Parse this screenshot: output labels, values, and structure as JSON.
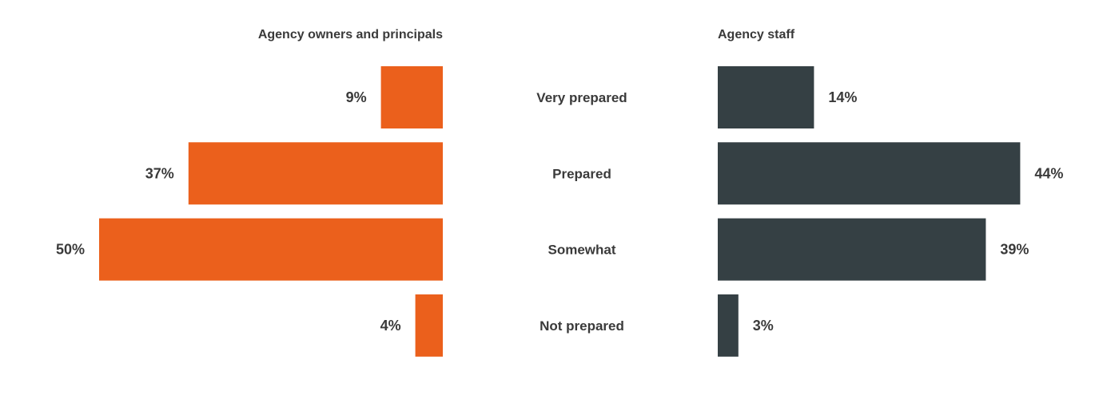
{
  "chart_data": {
    "type": "bar",
    "orientation": "horizontal",
    "layout": "butterfly",
    "categories": [
      "Very prepared",
      "Prepared",
      "Somewhat",
      "Not prepared"
    ],
    "series": [
      {
        "name": "Agency owners and principals",
        "values": [
          9,
          37,
          50,
          4
        ],
        "labels": [
          "9%",
          "37%",
          "50%",
          "4%"
        ],
        "color": "#eb601c",
        "direction": "left"
      },
      {
        "name": "Agency staff",
        "values": [
          14,
          44,
          39,
          3
        ],
        "labels": [
          "14%",
          "44%",
          "39%",
          "3%"
        ],
        "color": "#354044",
        "direction": "right"
      }
    ],
    "unit": "%",
    "xlim": [
      0,
      50
    ],
    "grid": false,
    "legend": "series titles above each half"
  },
  "colors": {
    "text": "#3a3a3a",
    "background": "#ffffff"
  }
}
